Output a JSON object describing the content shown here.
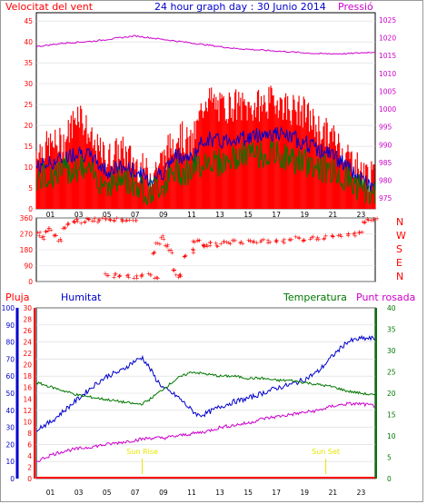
{
  "colors": {
    "wind": "#ff0000",
    "gust_fill": "#ff0000",
    "wind_avg": "#0000cc",
    "wind_low": "#007700",
    "pressure": "#cc00cc",
    "humidity": "#0000cc",
    "temperature": "#007700",
    "dewpoint": "#cc00cc",
    "rain": "#ff0000",
    "sun": "#e6e600",
    "grid": "#d9d9d9",
    "axis": "#000000"
  },
  "chart_data": [
    {
      "type": "line",
      "title": "24 hour graph day : 30 Junio 2014",
      "ylabel_left": "Velocitat del vent",
      "ylabel_right": "Pressió",
      "y_left_ticks": [
        0,
        5,
        10,
        15,
        20,
        25,
        30,
        35,
        40,
        45
      ],
      "y_left_range": [
        0,
        47
      ],
      "y_right_ticks": [
        975,
        980,
        985,
        990,
        995,
        1000,
        1005,
        1010,
        1015,
        1020,
        1025
      ],
      "y_right_range": [
        972,
        1027
      ],
      "x_ticks": [
        "01",
        "03",
        "05",
        "07",
        "09",
        "11",
        "13",
        "15",
        "17",
        "19",
        "21",
        "23"
      ],
      "x_range_hours": [
        0,
        24
      ],
      "series": [
        {
          "key": "gust",
          "values": [
            [
              0,
              14
            ],
            [
              1,
              15
            ],
            [
              2,
              16
            ],
            [
              3,
              24
            ],
            [
              4,
              15
            ],
            [
              5,
              12
            ],
            [
              6,
              14
            ],
            [
              7,
              11
            ],
            [
              8,
              8
            ],
            [
              9,
              12
            ],
            [
              10,
              18
            ],
            [
              11,
              15
            ],
            [
              12,
              27
            ],
            [
              13,
              24
            ],
            [
              14,
              25
            ],
            [
              15,
              24
            ],
            [
              16,
              25
            ],
            [
              17,
              26
            ],
            [
              18,
              24
            ],
            [
              19,
              23
            ],
            [
              20,
              19
            ],
            [
              21,
              17
            ],
            [
              22,
              13
            ],
            [
              23,
              9
            ],
            [
              24,
              7
            ]
          ]
        },
        {
          "key": "avg",
          "values": [
            [
              0,
              10
            ],
            [
              1,
              11
            ],
            [
              2,
              12
            ],
            [
              3,
              14
            ],
            [
              4,
              12
            ],
            [
              5,
              9
            ],
            [
              6,
              10
            ],
            [
              7,
              9
            ],
            [
              8,
              7
            ],
            [
              9,
              9
            ],
            [
              10,
              13
            ],
            [
              11,
              12
            ],
            [
              12,
              17
            ],
            [
              13,
              16
            ],
            [
              14,
              17
            ],
            [
              15,
              17
            ],
            [
              16,
              18
            ],
            [
              17,
              18
            ],
            [
              18,
              17
            ],
            [
              19,
              16
            ],
            [
              20,
              14
            ],
            [
              21,
              13
            ],
            [
              22,
              10
            ],
            [
              23,
              7
            ],
            [
              24,
              5
            ]
          ]
        },
        {
          "key": "low",
          "values": [
            [
              0,
              7
            ],
            [
              1,
              8
            ],
            [
              2,
              9
            ],
            [
              3,
              10
            ],
            [
              4,
              8
            ],
            [
              5,
              6
            ],
            [
              6,
              7
            ],
            [
              7,
              6
            ],
            [
              8,
              4
            ],
            [
              9,
              6
            ],
            [
              10,
              9
            ],
            [
              11,
              9
            ],
            [
              12,
              12
            ],
            [
              13,
              11
            ],
            [
              14,
              12
            ],
            [
              15,
              13
            ],
            [
              16,
              13
            ],
            [
              17,
              13
            ],
            [
              18,
              12
            ],
            [
              19,
              11
            ],
            [
              20,
              10
            ],
            [
              21,
              9
            ],
            [
              22,
              7
            ],
            [
              23,
              5
            ],
            [
              24,
              3
            ]
          ]
        },
        {
          "key": "pressure",
          "axis": "right",
          "values": [
            [
              0,
              1017.5
            ],
            [
              2,
              1018.5
            ],
            [
              4,
              1019
            ],
            [
              6,
              1020
            ],
            [
              7,
              1020.5
            ],
            [
              8,
              1020
            ],
            [
              10,
              1019
            ],
            [
              12,
              1018
            ],
            [
              14,
              1017
            ],
            [
              16,
              1016.5
            ],
            [
              18,
              1016
            ],
            [
              20,
              1015.5
            ],
            [
              22,
              1015.5
            ],
            [
              24,
              1016
            ]
          ]
        }
      ]
    },
    {
      "type": "scatter",
      "ylabel_right": [
        "N",
        "W",
        "S",
        "E",
        "N"
      ],
      "y_ticks": [
        360,
        270,
        180,
        90,
        0
      ],
      "y_range": [
        0,
        360
      ],
      "x_range_hours": [
        0,
        24
      ],
      "series": [
        {
          "key": "direction",
          "values": [
            [
              0.2,
              270
            ],
            [
              0.5,
              250
            ],
            [
              0.8,
              280
            ],
            [
              1,
              300
            ],
            [
              1.3,
              260
            ],
            [
              1.6,
              240
            ],
            [
              2,
              310
            ],
            [
              2.3,
              330
            ],
            [
              2.6,
              345
            ],
            [
              3,
              350
            ],
            [
              3.3,
              340
            ],
            [
              3.6,
              355
            ],
            [
              4,
              350
            ],
            [
              4.4,
              345
            ],
            [
              4.8,
              355
            ],
            [
              5.2,
              350
            ],
            [
              5.6,
              355
            ],
            [
              6,
              350
            ],
            [
              6.5,
              345
            ],
            [
              7,
              350
            ],
            [
              5,
              40
            ],
            [
              5.5,
              35
            ],
            [
              6,
              30
            ],
            [
              6.5,
              35
            ],
            [
              7,
              30
            ],
            [
              7.5,
              35
            ],
            [
              8,
              40
            ],
            [
              8.5,
              30
            ],
            [
              8.3,
              160
            ],
            [
              8.6,
              220
            ],
            [
              8.9,
              250
            ],
            [
              9.2,
              200
            ],
            [
              9.5,
              170
            ],
            [
              9.8,
              60
            ],
            [
              10,
              30
            ],
            [
              10.3,
              40
            ],
            [
              10.6,
              140
            ],
            [
              11,
              175
            ],
            [
              11.2,
              220
            ],
            [
              11.5,
              240
            ],
            [
              11.8,
              200
            ],
            [
              12,
              210
            ],
            [
              12.4,
              215
            ],
            [
              12.8,
              210
            ],
            [
              13.2,
              220
            ],
            [
              13.6,
              225
            ],
            [
              14,
              230
            ],
            [
              14.5,
              220
            ],
            [
              15,
              225
            ],
            [
              15.5,
              230
            ],
            [
              16,
              235
            ],
            [
              16.5,
              230
            ],
            [
              17,
              235
            ],
            [
              17.5,
              230
            ],
            [
              18,
              240
            ],
            [
              18.5,
              245
            ],
            [
              19,
              240
            ],
            [
              19.5,
              250
            ],
            [
              20,
              245
            ],
            [
              20.5,
              250
            ],
            [
              21,
              255
            ],
            [
              21.5,
              260
            ],
            [
              22,
              265
            ],
            [
              22.5,
              270
            ],
            [
              23,
              275
            ],
            [
              23.3,
              340
            ],
            [
              23.6,
              350
            ],
            [
              24,
              355
            ]
          ]
        }
      ]
    },
    {
      "type": "line",
      "labels": {
        "rain": "Pluja",
        "humidity": "Humitat",
        "temperature": "Temperatura",
        "dewpoint": "Punt rosada"
      },
      "sun_labels": [
        "Sun Rise",
        "Sun Set"
      ],
      "sun_hours": [
        7.5,
        20.5
      ],
      "y_humidity_ticks": [
        0,
        10,
        20,
        30,
        40,
        50,
        60,
        70,
        80,
        90,
        100
      ],
      "y_rain_ticks": [
        0,
        2,
        4,
        6,
        8,
        10,
        12,
        14,
        16,
        18,
        20,
        22,
        24,
        26,
        28,
        30
      ],
      "y_temp_ticks": [
        0,
        5,
        10,
        15,
        20,
        25,
        30,
        35,
        40
      ],
      "y_humidity_range": [
        0,
        100
      ],
      "y_temp_range": [
        0,
        40
      ],
      "x_ticks": [
        "01",
        "03",
        "05",
        "07",
        "09",
        "11",
        "13",
        "15",
        "17",
        "19",
        "21",
        "23"
      ],
      "x_range_hours": [
        0,
        24
      ],
      "series": [
        {
          "key": "humidity",
          "axis": "humidity",
          "values": [
            [
              0,
              29
            ],
            [
              1,
              33
            ],
            [
              2,
              40
            ],
            [
              3,
              47
            ],
            [
              4,
              54
            ],
            [
              5,
              60
            ],
            [
              6,
              63
            ],
            [
              6.8,
              68
            ],
            [
              7.5,
              71
            ],
            [
              8,
              65
            ],
            [
              8.5,
              58
            ],
            [
              9,
              53
            ],
            [
              10,
              48
            ],
            [
              11,
              40
            ],
            [
              11.5,
              37
            ],
            [
              12,
              38
            ],
            [
              13,
              42
            ],
            [
              14,
              45
            ],
            [
              15,
              47
            ],
            [
              16,
              50
            ],
            [
              17,
              53
            ],
            [
              18,
              55
            ],
            [
              19,
              58
            ],
            [
              20,
              63
            ],
            [
              21,
              72
            ],
            [
              22,
              80
            ],
            [
              23,
              82
            ],
            [
              24,
              82
            ]
          ]
        },
        {
          "key": "temperature",
          "axis": "temp",
          "values": [
            [
              0,
              22.5
            ],
            [
              1,
              21.5
            ],
            [
              2,
              20.5
            ],
            [
              3,
              19.5
            ],
            [
              4,
              19
            ],
            [
              5,
              18.5
            ],
            [
              6,
              18
            ],
            [
              7,
              17.5
            ],
            [
              7.5,
              17.5
            ],
            [
              8,
              18.5
            ],
            [
              9,
              21
            ],
            [
              10,
              23.5
            ],
            [
              11,
              25
            ],
            [
              12,
              24.5
            ],
            [
              13,
              24
            ],
            [
              14,
              24
            ],
            [
              15,
              23.5
            ],
            [
              16,
              23.5
            ],
            [
              17,
              23
            ],
            [
              18,
              23
            ],
            [
              19,
              22.5
            ],
            [
              20,
              22
            ],
            [
              21,
              21.5
            ],
            [
              22,
              20.5
            ],
            [
              23,
              20
            ],
            [
              24,
              19.5
            ]
          ]
        },
        {
          "key": "dewpoint",
          "axis": "temp",
          "values": [
            [
              0,
              4
            ],
            [
              1,
              5.5
            ],
            [
              2,
              6.5
            ],
            [
              3,
              7
            ],
            [
              4,
              7.5
            ],
            [
              5,
              8
            ],
            [
              6,
              8.5
            ],
            [
              7,
              9
            ],
            [
              8,
              9.5
            ],
            [
              9,
              9.5
            ],
            [
              10,
              10
            ],
            [
              11,
              10.5
            ],
            [
              12,
              11
            ],
            [
              13,
              12
            ],
            [
              14,
              12.5
            ],
            [
              15,
              13
            ],
            [
              16,
              14
            ],
            [
              17,
              14.5
            ],
            [
              18,
              15
            ],
            [
              19,
              15.5
            ],
            [
              20,
              16
            ],
            [
              21,
              17
            ],
            [
              22,
              17.5
            ],
            [
              23,
              17.5
            ],
            [
              24,
              17
            ]
          ]
        },
        {
          "key": "rain",
          "axis": "rain",
          "values": [
            [
              0,
              0
            ],
            [
              24,
              0
            ]
          ]
        }
      ]
    }
  ]
}
